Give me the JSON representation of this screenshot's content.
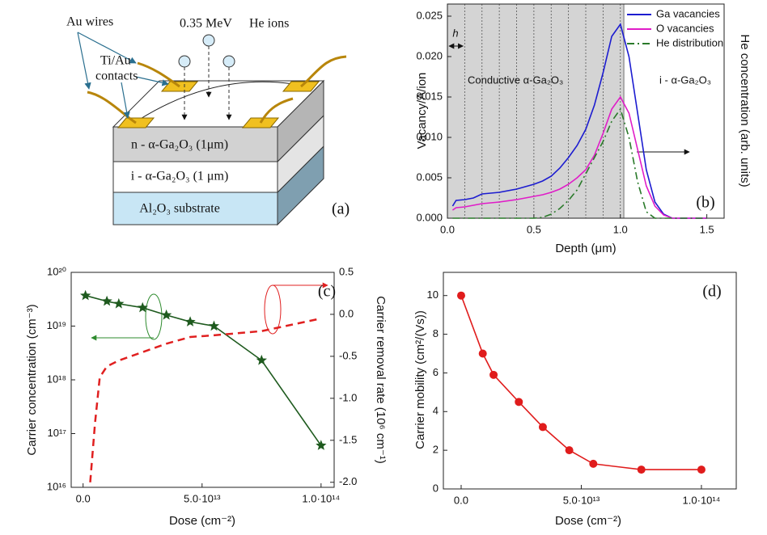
{
  "diagram": {
    "labels": {
      "au_wires": "Au wires",
      "energy": "0.35 MeV",
      "ions": "He ions",
      "contacts_1": "Ti/Au",
      "contacts_2": "contacts",
      "n_layer": "n - α-Ga₂O₃ (1μm)",
      "i_layer": "i - α-Ga₂O₃ (1 μm)",
      "substrate": "Al₂O₃ substrate",
      "panel_label": "(a)"
    }
  },
  "chart_data": [
    {
      "type": "line",
      "xlabel": "Depth (μm)",
      "ylabel": "Vacancy/A/ion",
      "y2label": "He concentration (arb. units)",
      "x": [
        0.03,
        0.05,
        0.1,
        0.15,
        0.2,
        0.3,
        0.4,
        0.5,
        0.55,
        0.6,
        0.65,
        0.7,
        0.75,
        0.8,
        0.85,
        0.9,
        0.95,
        1.0,
        1.05,
        1.1,
        1.15,
        1.2,
        1.25,
        1.3,
        1.5
      ],
      "series": [
        {
          "name": "Ga vacancies",
          "color": "#1c1cd0",
          "dash": "solid",
          "values": [
            0.0015,
            0.0022,
            0.0023,
            0.0025,
            0.003,
            0.0032,
            0.0036,
            0.0042,
            0.0046,
            0.0052,
            0.0062,
            0.0075,
            0.009,
            0.011,
            0.014,
            0.018,
            0.0225,
            0.024,
            0.02,
            0.013,
            0.006,
            0.002,
            0.0005,
            0,
            0
          ]
        },
        {
          "name": "O vacancies",
          "color": "#e01cc8",
          "dash": "solid",
          "values": [
            0.001,
            0.0013,
            0.0014,
            0.0016,
            0.0018,
            0.002,
            0.0023,
            0.0027,
            0.0029,
            0.0032,
            0.0036,
            0.0042,
            0.005,
            0.006,
            0.0078,
            0.0105,
            0.0135,
            0.015,
            0.013,
            0.0085,
            0.004,
            0.0015,
            0.0004,
            0,
            0
          ]
        },
        {
          "name": "He distribution",
          "color": "#2a7a2a",
          "dash": "dash-dot",
          "values": [
            0,
            0,
            0,
            0,
            0,
            0,
            0,
            0,
            0.0001,
            0.0005,
            0.0012,
            0.0022,
            0.0035,
            0.0055,
            0.0075,
            0.0095,
            0.012,
            0.0135,
            0.01,
            0.0045,
            0.0008,
            0,
            0,
            0,
            0
          ]
        }
      ],
      "xlim": [
        0,
        1.6
      ],
      "xticks": [
        {
          "value": 0,
          "label": "0.0"
        },
        0.5,
        {
          "value": 1,
          "label": "1.0"
        },
        1.5
      ],
      "ylim": [
        0,
        0.0265
      ],
      "yticks": [
        {
          "value": 0,
          "label": "0.000"
        },
        0.005,
        {
          "value": 0.01,
          "label": "0.010"
        },
        0.015,
        {
          "value": 0.02,
          "label": "0.020"
        },
        0.025
      ],
      "shade_xlim": [
        0,
        1.02
      ],
      "layer_boundaries": [
        0.1,
        0.2,
        0.3,
        0.4,
        0.5,
        0.6,
        0.7,
        0.8,
        0.9,
        1.0
      ],
      "annotations": [
        "Conductive α-Ga₂O₃",
        "i - α-Ga₂O₃",
        "h"
      ],
      "panel_label": "(b)",
      "legend": "upper right"
    },
    {
      "type": "line",
      "xlabel": "Dose (cm⁻²)",
      "ylabel": "Carrier concentration (cm⁻³)",
      "y2label": "Carrier removal rate (10⁶ cm⁻¹)",
      "ylog": true,
      "xlim": [
        -5000000000000.0,
        105500000000000.0
      ],
      "xticks": [
        {
          "value": 0,
          "label": "0.0"
        },
        {
          "value": 50000000000000.0,
          "label": "5.0·10¹³"
        },
        {
          "value": 100000000000000.0,
          "label": "1.0·10¹⁴"
        }
      ],
      "ylim": [
        1e+16,
        1e+20
      ],
      "yticks": [
        {
          "value": 1e+16,
          "label": "10¹⁶"
        },
        {
          "value": 1e+17,
          "label": "10¹⁷"
        },
        {
          "value": 1e+18,
          "label": "10¹⁸"
        },
        {
          "value": 1e+19,
          "label": "10¹⁹"
        },
        {
          "value": 1e+20,
          "label": "10²⁰"
        }
      ],
      "y2lim": [
        -2.06,
        0.5
      ],
      "y2ticks": [
        0.5,
        {
          "value": 0,
          "label": "0.0"
        },
        -0.5,
        {
          "value": -1,
          "label": "-1.0"
        },
        -1.5,
        {
          "value": -2,
          "label": "-2.0"
        }
      ],
      "series": [
        {
          "color": "#1e5a1e",
          "dash": "solid",
          "marker": "star",
          "x": [
            1000000000000.0,
            10000000000000.0,
            15000000000000.0,
            25000000000000.0,
            35000000000000.0,
            45000000000000.0,
            55000000000000.0,
            75000000000000.0,
            100000000000000.0
          ],
          "values": [
            3.7e+19,
            2.9e+19,
            2.6e+19,
            2.2e+19,
            1.6e+19,
            1.2e+19,
            1e+19,
            2.3e+18,
            6e+16
          ]
        },
        {
          "color": "#e02020",
          "dash": "dashed",
          "axis": "y2",
          "x": [
            3000000000000.0,
            5000000000000.0,
            7000000000000.0,
            10000000000000.0,
            15000000000000.0,
            25000000000000.0,
            35000000000000.0,
            45000000000000.0,
            55000000000000.0,
            75000000000000.0,
            100000000000000.0
          ],
          "values": [
            -2.0,
            -1.3,
            -0.75,
            -0.62,
            -0.55,
            -0.45,
            -0.35,
            -0.27,
            -0.25,
            -0.2,
            -0.05
          ]
        }
      ],
      "panel_label": "(c)"
    },
    {
      "type": "line",
      "xlabel": "Dose (cm⁻²)",
      "ylabel": "Carrier mobility (cm²/(Vs))",
      "xlim": [
        -7400000000000.0,
        114500000000000.0
      ],
      "xticks": [
        {
          "value": 0,
          "label": "0.0"
        },
        {
          "value": 50000000000000.0,
          "label": "5.0·10¹³"
        },
        {
          "value": 100000000000000.0,
          "label": "1.0·10¹⁴"
        }
      ],
      "ylim": [
        0,
        11.2
      ],
      "yticks": [
        0,
        2,
        4,
        6,
        8,
        10
      ],
      "series": [
        {
          "color": "#e01c1c",
          "dash": "solid",
          "marker": "circle",
          "x": [
            0,
            9000000000000.0,
            13500000000000.0,
            24000000000000.0,
            34000000000000.0,
            45000000000000.0,
            55000000000000.0,
            75000000000000.0,
            100000000000000.0
          ],
          "values": [
            10,
            7,
            5.9,
            4.5,
            3.2,
            2.0,
            1.3,
            1.0,
            1.0
          ]
        }
      ],
      "panel_label": "(d)"
    }
  ]
}
